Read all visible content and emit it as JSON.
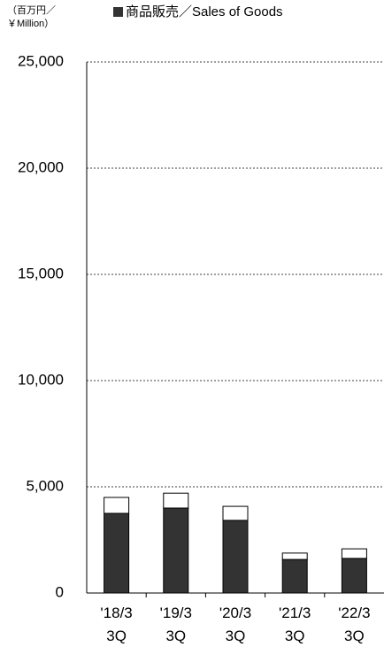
{
  "chart_data": {
    "type": "stacked_bar",
    "y_label": [
      "（百万円／",
      "￥Million）"
    ],
    "categories": [
      "'18/3 3Q",
      "'19/3 3Q",
      "'20/3 3Q",
      "'21/3 3Q",
      "'22/3 3Q"
    ],
    "series": [
      {
        "name": "商品販売／Sales of Goods",
        "color": "#333333",
        "values": [
          3750,
          4000,
          3420,
          1580,
          1630
        ]
      },
      {
        "color": "#ffffff",
        "values": [
          750,
          700,
          660,
          300,
          450
        ]
      }
    ],
    "ylim": [
      0,
      25000
    ],
    "yticks": [
      {
        "value": 0,
        "label": "0"
      },
      {
        "value": 5000,
        "label": "5,000"
      },
      {
        "value": 10000,
        "label": "10,000"
      },
      {
        "value": 15000,
        "label": "15,000"
      },
      {
        "value": 20000,
        "label": "20,000"
      },
      {
        "value": 25000,
        "label": "25,000"
      }
    ],
    "grid": true
  }
}
